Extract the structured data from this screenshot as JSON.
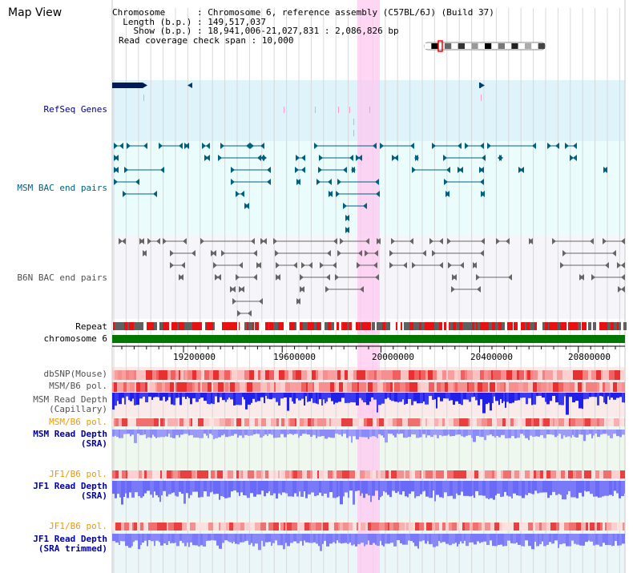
{
  "map_view": {
    "title": "Map View"
  },
  "info": {
    "chromosome": "Chromosome      : Chromosome 6, reference assembly (C57BL/6J) (Build 37)",
    "length": "  Length (b.p.) : 149,517,037",
    "show": "    Show (b.p.) : 18,941,006-21,027,831 : 2,086,826 bp",
    "span": "Read coverage check span : 10,000"
  },
  "tracks": {
    "refseq": "RefSeq Genes",
    "msm_bac": "MSM BAC end pairs",
    "b6n_bac": "B6N BAC end pairs",
    "repeat": "Repeat",
    "chromosome": "chromosome 6",
    "dbsnp": "dbSNP(Mouse)",
    "msm_b6_pol_1": "MSM/B6 pol.",
    "msm_read_depth_cap_1": "MSM Read Depth",
    "msm_read_depth_cap_2": "(Capillary)",
    "msm_b6_pol_2": "MSM/B6 pol.",
    "msm_read_depth_sra_1": "MSM Read Depth",
    "msm_read_depth_sra_2": "(SRA)",
    "jf1_b6_pol_1": "JF1/B6 pol.",
    "jf1_read_depth_sra_1": "JF1 Read Depth",
    "jf1_read_depth_sra_2": "(SRA)",
    "jf1_b6_pol_2": "JF1/B6 pol.",
    "jf1_read_depth_trim_1": "JF1 Read Depth",
    "jf1_read_depth_trim_2": "(SRA trimmed)"
  },
  "axis": {
    "ticks": [
      "19200000",
      "19600000",
      "20000000",
      "20400000",
      "20800000"
    ]
  },
  "colors": {
    "refseq_label": "#000080",
    "msm_label": "#006080",
    "b6n_label": "#505050",
    "pol_orange": "#ee9900",
    "depth_blue": "#0000a0",
    "highlight": "#ffc8f0"
  }
}
